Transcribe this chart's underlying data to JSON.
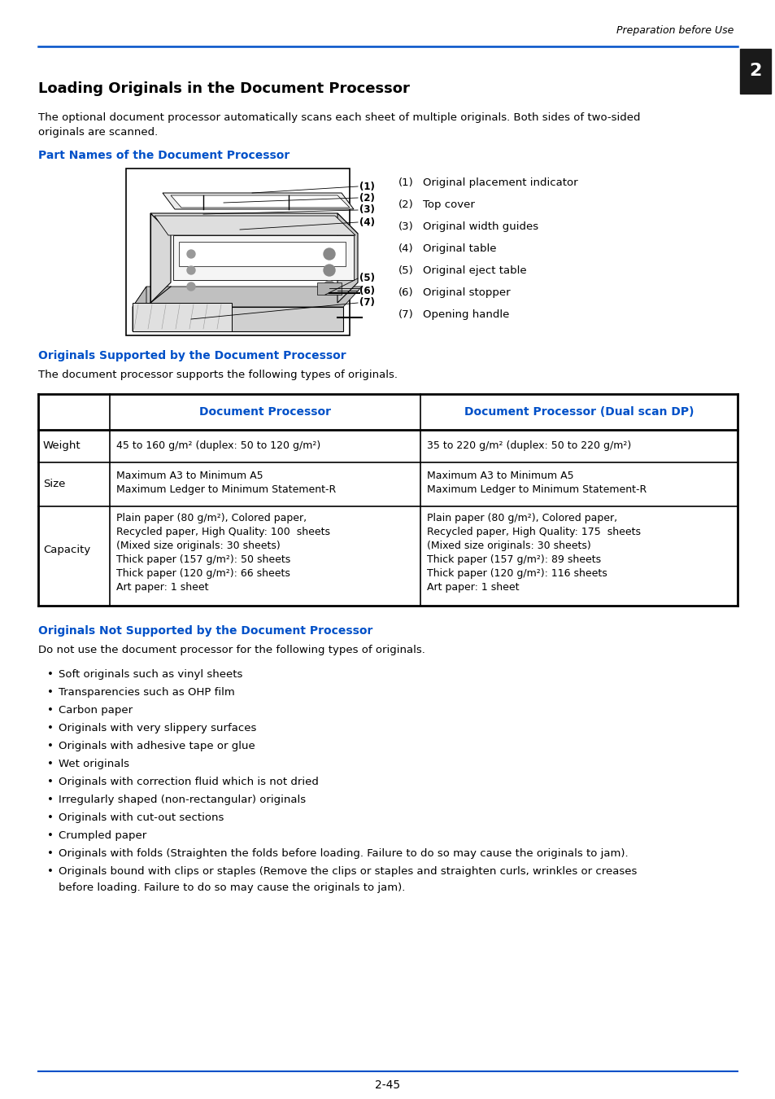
{
  "page_header": "Preparation before Use",
  "chapter_num": "2",
  "main_title": "Loading Originals in the Document Processor",
  "intro_line1": "The optional document processor automatically scans each sheet of multiple originals. Both sides of two-sided",
  "intro_line2": "originals are scanned.",
  "section1_title": "Part Names of the Document Processor",
  "part_names_nums": [
    "(1)",
    "(2)",
    "(3)",
    "(4)",
    "(5)",
    "(6)",
    "(7)"
  ],
  "part_names_text": [
    "Original placement indicator",
    "Top cover",
    "Original width guides",
    "Original table",
    "Original eject table",
    "Original stopper",
    "Opening handle"
  ],
  "section2_title": "Originals Supported by the Document Processor",
  "section2_intro": "The document processor supports the following types of originals.",
  "table_col1_header": "Document Processor",
  "table_col2_header": "Document Processor (Dual scan DP)",
  "table_row_weight_label": "Weight",
  "table_row_weight_col1": "45 to 160 g/m² (duplex: 50 to 120 g/m²)",
  "table_row_weight_col2": "35 to 220 g/m² (duplex: 50 to 220 g/m²)",
  "table_row_size_label": "Size",
  "table_row_size_col1": [
    "Maximum A3 to Minimum A5",
    "Maximum Ledger to Minimum Statement-R"
  ],
  "table_row_size_col2": [
    "Maximum A3 to Minimum A5",
    "Maximum Ledger to Minimum Statement-R"
  ],
  "table_row_cap_label": "Capacity",
  "table_row_cap_col1": [
    "Plain paper (80 g/m²), Colored paper,",
    "Recycled paper, High Quality: 100  sheets",
    "(Mixed size originals: 30 sheets)",
    "Thick paper (157 g/m²): 50 sheets",
    "Thick paper (120 g/m²): 66 sheets",
    "Art paper: 1 sheet"
  ],
  "table_row_cap_col2": [
    "Plain paper (80 g/m²), Colored paper,",
    "Recycled paper, High Quality: 175  sheets",
    "(Mixed size originals: 30 sheets)",
    "Thick paper (157 g/m²): 89 sheets",
    "Thick paper (120 g/m²): 116 sheets",
    "Art paper: 1 sheet"
  ],
  "section3_title": "Originals Not Supported by the Document Processor",
  "section3_intro": "Do not use the document processor for the following types of originals.",
  "bullets": [
    "Soft originals such as vinyl sheets",
    "Transparencies such as OHP film",
    "Carbon paper",
    "Originals with very slippery surfaces",
    "Originals with adhesive tape or glue",
    "Wet originals",
    "Originals with correction fluid which is not dried",
    "Irregularly shaped (non-rectangular) originals",
    "Originals with cut-out sections",
    "Crumpled paper",
    "Originals with folds (Straighten the folds before loading. Failure to do so may cause the originals to jam).",
    [
      "Originals bound with clips or staples (Remove the clips or staples and straighten curls, wrinkles or creases",
      "before loading. Failure to do so may cause the originals to jam)."
    ]
  ],
  "page_number": "2-45",
  "blue": "#0050C8",
  "black": "#000000",
  "white": "#ffffff",
  "gray1": "#e8e8e8",
  "gray2": "#cccccc",
  "gray3": "#aaaaaa"
}
